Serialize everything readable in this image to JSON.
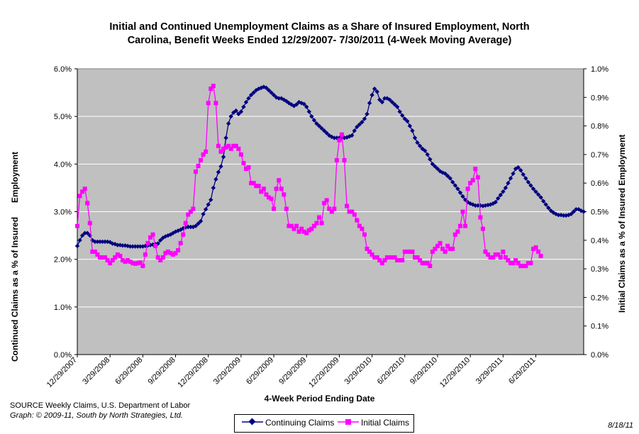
{
  "title_line1": "Initial and Continued Unemployment Claims as a Share of Insured Employment, North",
  "title_line2": "Carolina, Benefit Weeks Ended 12/29/2007- 7/30/2011 (4-Week Moving Average)",
  "source": "SOURCE  Weekly Claims, U.S. Department of Labor",
  "credit": "Graph: © 2009-11, South by North Strategies, Ltd.",
  "date_stamp": "8/18/11",
  "colors": {
    "plot_bg": "#C0C0C0",
    "continuing": "#000080",
    "initial": "#FF00FF",
    "gridline": "#FFFFFF"
  },
  "chart_data": {
    "type": "line",
    "xlabel": "4-Week Period Ending Date",
    "ylabel_left": "Continued Claims as a % of Insured      Employment",
    "ylabel_right": "Initial Claims as a % of Insured Employment",
    "ylim_left": [
      0,
      6
    ],
    "ylim_right": [
      0,
      1
    ],
    "left_ticks": [
      "0.0%",
      "1.0%",
      "2.0%",
      "3.0%",
      "4.0%",
      "5.0%",
      "6.0%"
    ],
    "right_ticks": [
      "0.0%",
      "0.1%",
      "0.2%",
      "0.3%",
      "0.4%",
      "0.5%",
      "0.6%",
      "0.7%",
      "0.8%",
      "0.9%",
      "1.0%"
    ],
    "x_tick_labels": [
      "12/29/2007",
      "3/29/2008",
      "6/29/2008",
      "9/29/2008",
      "12/29/2008",
      "3/29/2009",
      "6/29/2009",
      "9/29/2009",
      "12/29/2009",
      "3/29/2010",
      "6/29/2010",
      "9/29/2010",
      "12/29/2010",
      "3/29/2011",
      "6/29/2011"
    ],
    "grid": true,
    "legend_position": "bottom",
    "series": [
      {
        "name": "Continuing Claims",
        "axis": "left",
        "marker": "diamond",
        "values": [
          2.28,
          2.4,
          2.5,
          2.55,
          2.55,
          2.5,
          2.4,
          2.37,
          2.37,
          2.37,
          2.37,
          2.37,
          2.37,
          2.36,
          2.33,
          2.32,
          2.3,
          2.3,
          2.29,
          2.29,
          2.28,
          2.27,
          2.27,
          2.27,
          2.27,
          2.27,
          2.27,
          2.28,
          2.29,
          2.3,
          2.31,
          2.32,
          2.33,
          2.4,
          2.45,
          2.48,
          2.5,
          2.52,
          2.55,
          2.58,
          2.6,
          2.62,
          2.65,
          2.67,
          2.68,
          2.68,
          2.68,
          2.7,
          2.75,
          2.8,
          2.95,
          3.05,
          3.15,
          3.25,
          3.5,
          3.68,
          3.83,
          3.95,
          4.15,
          4.55,
          4.85,
          5.0,
          5.08,
          5.12,
          5.05,
          5.1,
          5.2,
          5.3,
          5.38,
          5.45,
          5.5,
          5.55,
          5.58,
          5.6,
          5.62,
          5.6,
          5.55,
          5.5,
          5.45,
          5.4,
          5.38,
          5.38,
          5.35,
          5.32,
          5.28,
          5.25,
          5.22,
          5.25,
          5.3,
          5.28,
          5.26,
          5.2,
          5.1,
          5.0,
          4.92,
          4.85,
          4.8,
          4.75,
          4.7,
          4.65,
          4.6,
          4.57,
          4.55,
          4.55,
          4.55,
          4.55,
          4.55,
          4.56,
          4.58,
          4.6,
          4.7,
          4.78,
          4.83,
          4.88,
          4.95,
          5.05,
          5.28,
          5.45,
          5.58,
          5.52,
          5.35,
          5.3,
          5.38,
          5.38,
          5.35,
          5.3,
          5.25,
          5.2,
          5.1,
          5.02,
          4.95,
          4.9,
          4.8,
          4.7,
          4.55,
          4.45,
          4.38,
          4.32,
          4.28,
          4.2,
          4.1,
          4.0,
          3.95,
          3.9,
          3.85,
          3.82,
          3.8,
          3.75,
          3.7,
          3.62,
          3.55,
          3.48,
          3.4,
          3.32,
          3.25,
          3.2,
          3.17,
          3.15,
          3.13,
          3.13,
          3.13,
          3.12,
          3.13,
          3.14,
          3.15,
          3.17,
          3.2,
          3.28,
          3.35,
          3.42,
          3.5,
          3.6,
          3.7,
          3.8,
          3.9,
          3.93,
          3.87,
          3.78,
          3.7,
          3.62,
          3.55,
          3.48,
          3.42,
          3.36,
          3.3,
          3.22,
          3.15,
          3.08,
          3.02,
          2.98,
          2.95,
          2.93,
          2.93,
          2.92,
          2.92,
          2.93,
          2.95,
          3.0,
          3.05,
          3.05,
          3.02,
          3.0
        ]
      },
      {
        "name": "Initial Claims",
        "axis": "right",
        "marker": "square",
        "values": [
          0.45,
          0.555,
          0.57,
          0.58,
          0.53,
          0.46,
          0.36,
          0.36,
          0.35,
          0.34,
          0.34,
          0.34,
          0.33,
          0.32,
          0.33,
          0.34,
          0.35,
          0.345,
          0.33,
          0.325,
          0.33,
          0.325,
          0.32,
          0.318,
          0.32,
          0.322,
          0.31,
          0.35,
          0.39,
          0.41,
          0.42,
          0.38,
          0.34,
          0.33,
          0.34,
          0.355,
          0.36,
          0.355,
          0.35,
          0.355,
          0.365,
          0.39,
          0.42,
          0.46,
          0.49,
          0.5,
          0.51,
          0.64,
          0.66,
          0.68,
          0.7,
          0.71,
          0.88,
          0.93,
          0.94,
          0.88,
          0.73,
          0.71,
          0.72,
          0.725,
          0.73,
          0.72,
          0.73,
          0.73,
          0.72,
          0.7,
          0.67,
          0.65,
          0.655,
          0.6,
          0.6,
          0.59,
          0.59,
          0.57,
          0.58,
          0.56,
          0.55,
          0.545,
          0.51,
          0.58,
          0.61,
          0.58,
          0.56,
          0.51,
          0.45,
          0.45,
          0.44,
          0.45,
          0.43,
          0.44,
          0.43,
          0.425,
          0.435,
          0.44,
          0.45,
          0.46,
          0.48,
          0.46,
          0.53,
          0.54,
          0.51,
          0.5,
          0.51,
          0.68,
          0.75,
          0.77,
          0.68,
          0.52,
          0.5,
          0.5,
          0.49,
          0.47,
          0.45,
          0.44,
          0.42,
          0.37,
          0.36,
          0.35,
          0.34,
          0.34,
          0.33,
          0.32,
          0.33,
          0.34,
          0.34,
          0.34,
          0.34,
          0.33,
          0.33,
          0.33,
          0.36,
          0.36,
          0.36,
          0.36,
          0.34,
          0.34,
          0.33,
          0.32,
          0.32,
          0.32,
          0.31,
          0.36,
          0.37,
          0.38,
          0.39,
          0.37,
          0.36,
          0.38,
          0.37,
          0.37,
          0.42,
          0.43,
          0.45,
          0.5,
          0.45,
          0.58,
          0.6,
          0.61,
          0.65,
          0.62,
          0.48,
          0.44,
          0.36,
          0.35,
          0.34,
          0.34,
          0.35,
          0.35,
          0.34,
          0.36,
          0.34,
          0.33,
          0.32,
          0.32,
          0.33,
          0.32,
          0.31,
          0.31,
          0.31,
          0.32,
          0.32,
          0.37,
          0.375,
          0.36,
          0.345
        ]
      }
    ]
  }
}
